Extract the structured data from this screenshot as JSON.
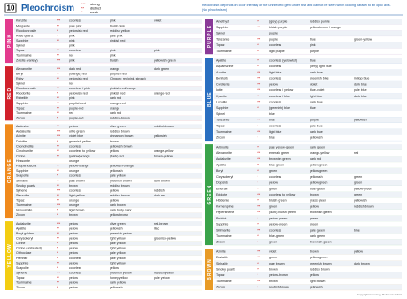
{
  "header": {
    "number": "10",
    "title": "Pleochroism",
    "legend": [
      [
        "***",
        "strong"
      ],
      [
        "**",
        "distinct"
      ],
      [
        "*",
        "weak"
      ]
    ],
    "note": [
      "Pleochroism depends on color intensity of the uninfected gem under test and cannot be seen when looking parallel to an optic axis.",
      "(No pleochroism)"
    ]
  },
  "columns": [
    {
      "sections": [
        {
          "label": "PINK",
          "color": "#e33b8e",
          "rows": [
            [
              "Kunzite",
              "***",
              "colorless",
              "pink",
              "violet"
            ],
            [
              "Morganite",
              "**",
              "pale pink",
              "bluish pink",
              ""
            ],
            [
              "Rhodochrosite",
              "*",
              "yellowish red",
              "reddish yellow",
              ""
            ],
            [
              "Rose quartz",
              "*",
              "pink",
              "pale pink",
              ""
            ],
            [
              "Sapphire",
              "**",
              "pink",
              "pinkish red",
              ""
            ],
            [
              "Spinel",
              "",
              "pink",
              "",
              ""
            ],
            [
              "Topaz",
              "**",
              "colorless",
              "pink",
              "pink"
            ],
            [
              "Tourmaline",
              "**",
              "red",
              "pink",
              ""
            ],
            [
              "Zoisite (variety)",
              "***",
              "pink",
              "bluish",
              "yellowish green"
            ]
          ]
        },
        {
          "label": "RED",
          "color": "#d1212b",
          "rows": [
            [
              "Alexandrite",
              "***",
              "dark red",
              "orange",
              "dark green"
            ],
            [
              "Beryl",
              "**",
              "(orange) red",
              "purplish red",
              ""
            ],
            [
              "Ruby",
              "**",
              "yellowish red",
              "(Ongoin: red/pink, strong)",
              ""
            ],
            [
              "Spinel",
              "",
              "red",
              "",
              ""
            ],
            [
              "Rhodochrosite",
              "**",
              "colorless / pink",
              "pinkish-red/orange",
              ""
            ],
            [
              "Rhodonite",
              "*",
              "yellowish red",
              "pinkish red",
              "orange-red"
            ],
            [
              "Rubellite",
              "**",
              "pink",
              "dark red",
              ""
            ],
            [
              "Sapphire",
              "**",
              "purplish-red",
              "orange-red",
              ""
            ],
            [
              "Topaz",
              "**",
              "purple-red",
              "orange",
              ""
            ],
            [
              "Tourmaline",
              "**",
              "red",
              "dark red",
              ""
            ],
            [
              "Zircon",
              "*",
              "purple-red",
              "reddish-brown",
              ""
            ]
          ]
        },
        {
          "label": "ORANGE",
          "color": "#f08a1d",
          "rows": [
            [
              "Andesine",
              "**",
              "yellow",
              "olive green",
              "reddish brown"
            ],
            [
              "Andalusite",
              "***",
              "olive green",
              "reddish brown",
              ""
            ],
            [
              "Axinite",
              "***",
              "violet blue",
              "cinnamon brown",
              "yellowish"
            ],
            [
              "Datolite",
              "*",
              "greenish-yellow",
              "brown",
              ""
            ],
            [
              "Chondrodite",
              "**",
              "colorless",
              "yellowish brown",
              ""
            ],
            [
              "Clinohumite",
              "**",
              "colorless to yellow",
              "yellow",
              "orange-yellow"
            ],
            [
              "Citrine",
              "**",
              "(yellow)orange",
              "(dark) red",
              "brown-yellow"
            ],
            [
              "Hessonite",
              "",
              "orange",
              "",
              ""
            ],
            [
              "Padparadscha",
              "**",
              "yellow-orange",
              "yellowish-orange",
              ""
            ],
            [
              "Sapphire",
              "**",
              "orange",
              "yellowish",
              ""
            ],
            [
              "Scapolite",
              "*",
              "colorless",
              "pale yellow",
              ""
            ],
            [
              "Sinhalite",
              "**",
              "pale brown",
              "greenish brown",
              "dark brown"
            ],
            [
              "Smoky quartz",
              "**",
              "brown",
              "reddish brown",
              ""
            ],
            [
              "Sphene",
              "***",
              "colorless",
              "yellow",
              "reddish"
            ],
            [
              "Staurolite",
              "**",
              "light yellow",
              "reddish-brown",
              "dark red"
            ],
            [
              "Topaz",
              "**",
              "orange",
              "yellow",
              ""
            ],
            [
              "Tourmaline",
              "***",
              "orange",
              "dark brown",
              ""
            ],
            [
              "Vesuvianite",
              "*",
              "light brown",
              "dark body color",
              ""
            ],
            [
              "Zircon",
              "*",
              "brown",
              "yellow-brown",
              ""
            ]
          ]
        },
        {
          "label": "YELLOW",
          "color": "#f3cd12",
          "rows": [
            [
              "Andalusite",
              "***",
              "yellow",
              "olive green",
              "red-brown"
            ],
            [
              "Apatite",
              "**",
              "yellow",
              "yellowish",
              "lilac"
            ],
            [
              "Beryl golden",
              "**",
              "yellow",
              "greenish-yellow",
              ""
            ],
            [
              "Chrysoberyl",
              "**",
              "yellow",
              "light yellow",
              "greenish-yellow"
            ],
            [
              "Citrine",
              "*",
              "yellow",
              "pale yellow",
              ""
            ],
            [
              "Citrine (untreated)",
              "*",
              "yellow",
              "light yellow",
              ""
            ],
            [
              "Orthoclase",
              "*",
              "yellow",
              "pale yellow",
              ""
            ],
            [
              "Prehnite",
              "*",
              "colorless",
              "pale yellow",
              ""
            ],
            [
              "Sapphire",
              "**",
              "yellow",
              "light yellow",
              ""
            ],
            [
              "Scapolite",
              "*",
              "colorless",
              "yellow",
              ""
            ],
            [
              "Sphene",
              "***",
              "colorless",
              "greenish yellow",
              "reddish yellow"
            ],
            [
              "Topaz",
              "**",
              "yellow",
              "honey yellow",
              "pale yellow"
            ],
            [
              "Tourmaline",
              "**",
              "yellow",
              "dark yellow",
              ""
            ],
            [
              "Zircon",
              "*",
              "yellow",
              "yellowish",
              ""
            ]
          ]
        }
      ]
    },
    {
      "sections": [
        {
          "label": "PURPLE",
          "color": "#8a3a98",
          "rows": [
            [
              "Amethyst",
              "**",
              "(grey) purple",
              "reddish purple",
              ""
            ],
            [
              "Sapphire",
              "***",
              "bluish purple",
              "yellow-brown / orange",
              ""
            ],
            [
              "Spinel",
              "",
              "purple",
              "",
              ""
            ],
            [
              "Tanzanite",
              "***",
              "purple",
              "blue",
              "green-yellow"
            ],
            [
              "Topaz",
              "**",
              "colorless",
              "pink",
              ""
            ],
            [
              "Tourmaline",
              "**",
              "light purple",
              "purple",
              ""
            ]
          ]
        },
        {
          "label": "BLUE",
          "color": "#2a6fc0",
          "rows": [
            [
              "Apatite",
              "**",
              "colorless (yellowish)",
              "blue",
              ""
            ],
            [
              "Aquamarine",
              "**",
              "colorless",
              "(very) light blue",
              ""
            ],
            [
              "Azurite",
              "***",
              "light blue",
              "dark blue",
              ""
            ],
            [
              "Benitoite",
              "***",
              "colorless",
              "greenish blue",
              "indigo blue"
            ],
            [
              "Cordierite",
              "***",
              "yellow",
              "violet",
              "dark blue"
            ],
            [
              "Iolite",
              "***",
              "colorless / yellow",
              "blue-violet",
              "pale blue"
            ],
            [
              "Kyanite",
              "**",
              "colorless / blue",
              "light blue",
              "dark blue"
            ],
            [
              "Lazulite",
              "***",
              "colorless",
              "dark blue",
              ""
            ],
            [
              "Sapphire",
              "**",
              "(greenish) blue",
              "blue",
              ""
            ],
            [
              "Spinel",
              "",
              "blue",
              "",
              ""
            ],
            [
              "Tanzanite",
              "***",
              "blue",
              "purple",
              "yellowish"
            ],
            [
              "Topaz",
              "*",
              "colorless",
              "pale blue",
              ""
            ],
            [
              "Tourmaline",
              "***",
              "light blue",
              "dark blue",
              ""
            ],
            [
              "Zircon",
              "*",
              "blue",
              "yellowish",
              ""
            ]
          ]
        },
        {
          "label": "GREEN",
          "color": "#3aa34a",
          "rows": [
            [
              "Actinolite",
              "**",
              "pale yellow-green",
              "dark green",
              ""
            ],
            [
              "Alexandrite",
              "***",
              "emerald green",
              "orange-yellow",
              "red"
            ],
            [
              "Andalusite",
              "***",
              "brownish green",
              "dark red",
              ""
            ],
            [
              "Apatite",
              "**",
              "blue-green",
              "yellow-green",
              ""
            ],
            [
              "Beryl",
              "**",
              "green",
              "yellow-green",
              ""
            ],
            [
              "Chrysoberyl",
              "*",
              "colorless",
              "yellowish",
              "green"
            ],
            [
              "Diopside",
              "*",
              "yellow",
              "yellow-green",
              "green"
            ],
            [
              "Emerald",
              "**",
              "green",
              "blue-green",
              "yellow-green"
            ],
            [
              "Epidote",
              "***",
              "colorless to yellow",
              "brown",
              "green"
            ],
            [
              "Hiddenite",
              "**",
              "bluish green",
              "grass green",
              "yellowish"
            ],
            [
              "Kornerupine",
              "***",
              "green",
              "yellow",
              "reddish brown"
            ],
            [
              "Hypersthene",
              "***",
              "(dark) bluish green",
              "brownish green",
              ""
            ],
            [
              "Peridot",
              "*",
              "yellow-green",
              "green",
              ""
            ],
            [
              "Sapphire",
              "**",
              "yellow-green",
              "green",
              ""
            ],
            [
              "Sillimanite",
              "***",
              "colorless",
              "pale green",
              "blue"
            ],
            [
              "Tourmaline",
              "**",
              "blue-green",
              "dark green",
              ""
            ],
            [
              "Zircon",
              "*",
              "green",
              "brownish green",
              ""
            ]
          ]
        },
        {
          "label": "BROWN",
          "color": "#e89b27",
          "rows": [
            [
              "Axinite",
              "***",
              "violet",
              "brown",
              "yellow"
            ],
            [
              "Enstatite",
              "***",
              "green",
              "yellow-green",
              ""
            ],
            [
              "Sinhalite",
              "**",
              "pale brown",
              "greenish brown",
              "dark brown"
            ],
            [
              "Smoky quartz",
              "**",
              "brown",
              "reddish brown",
              ""
            ],
            [
              "Topaz",
              "*",
              "yellow-brown",
              "yellow",
              ""
            ],
            [
              "Tourmaline",
              "***",
              "brown",
              "light brown",
              ""
            ],
            [
              "Zircon",
              "*",
              "reddish brown",
              "yellowish",
              ""
            ]
          ]
        }
      ]
    }
  ],
  "footer": "Copyright  Gemology Reference Chart"
}
